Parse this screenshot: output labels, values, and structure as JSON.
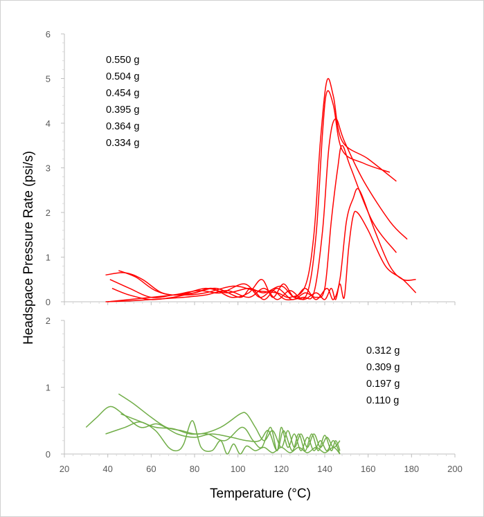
{
  "chart_data": [
    {
      "type": "line",
      "panel": "top",
      "ylabel": "Headspace Pressure Rate (psi/s)",
      "xlim": [
        20,
        200
      ],
      "ylim": [
        0,
        6
      ],
      "x_ticks": [
        "20",
        "40",
        "60",
        "80",
        "100",
        "120",
        "140",
        "160",
        "180",
        "200"
      ],
      "y_ticks": [
        "0",
        "1",
        "2",
        "3",
        "4",
        "5",
        "6"
      ],
      "legend_placement": "top-left",
      "color": "#ff0000",
      "series": [
        {
          "name": "0.550 g",
          "points": [
            [
              39,
              0.6
            ],
            [
              48,
              0.65
            ],
            [
              56,
              0.5
            ],
            [
              65,
              0.2
            ],
            [
              75,
              0.15
            ],
            [
              85,
              0.2
            ],
            [
              98,
              0.35
            ],
            [
              108,
              0.25
            ],
            [
              118,
              0.2
            ],
            [
              124,
              0.1
            ],
            [
              131,
              0.35
            ],
            [
              135,
              1.5
            ],
            [
              138,
              3.6
            ],
            [
              141,
              4.95
            ],
            [
              144,
              4.6
            ],
            [
              148,
              3.6
            ],
            [
              160,
              3.2
            ],
            [
              173,
              2.7
            ]
          ]
        },
        {
          "name": "0.504 g",
          "points": [
            [
              45,
              0.7
            ],
            [
              53,
              0.55
            ],
            [
              62,
              0.25
            ],
            [
              72,
              0.15
            ],
            [
              85,
              0.3
            ],
            [
              95,
              0.2
            ],
            [
              105,
              0.3
            ],
            [
              112,
              0.2
            ],
            [
              120,
              0.35
            ],
            [
              126,
              0.1
            ],
            [
              132,
              0.2
            ],
            [
              136,
              1.5
            ],
            [
              139,
              3.8
            ],
            [
              141,
              4.7
            ],
            [
              144,
              4.4
            ],
            [
              148,
              3.4
            ],
            [
              158,
              3.1
            ],
            [
              170,
              2.9
            ]
          ]
        },
        {
          "name": "0.454 g",
          "points": [
            [
              41,
              0.5
            ],
            [
              50,
              0.3
            ],
            [
              60,
              0.1
            ],
            [
              70,
              0.15
            ],
            [
              82,
              0.25
            ],
            [
              92,
              0.2
            ],
            [
              103,
              0.4
            ],
            [
              110,
              0.1
            ],
            [
              116,
              0.25
            ],
            [
              122,
              0.05
            ],
            [
              130,
              0.1
            ],
            [
              135,
              0.2
            ],
            [
              139,
              1.6
            ],
            [
              142,
              3.5
            ],
            [
              145,
              4.1
            ],
            [
              149,
              3.6
            ],
            [
              158,
              2.7
            ],
            [
              170,
              1.8
            ],
            [
              178,
              1.4
            ]
          ]
        },
        {
          "name": "0.395 g",
          "points": [
            [
              42,
              0.3
            ],
            [
              50,
              0.15
            ],
            [
              60,
              0.05
            ],
            [
              70,
              0.1
            ],
            [
              80,
              0.2
            ],
            [
              90,
              0.3
            ],
            [
              101,
              0.1
            ],
            [
              106,
              0.3
            ],
            [
              112,
              0.05
            ],
            [
              118,
              0.3
            ],
            [
              125,
              0.05
            ],
            [
              131,
              0.2
            ],
            [
              136,
              0.1
            ],
            [
              140,
              0.3
            ],
            [
              143,
              1.8
            ],
            [
              146,
              3.0
            ],
            [
              148,
              3.5
            ],
            [
              152,
              3.0
            ],
            [
              162,
              1.8
            ],
            [
              173,
              1.1
            ]
          ]
        },
        {
          "name": "0.364 g",
          "points": [
            [
              40,
              0
            ],
            [
              50,
              0.05
            ],
            [
              60,
              0.1
            ],
            [
              70,
              0.15
            ],
            [
              80,
              0.2
            ],
            [
              88,
              0.3
            ],
            [
              97,
              0.1
            ],
            [
              105,
              0.2
            ],
            [
              111,
              0.5
            ],
            [
              116,
              0.1
            ],
            [
              121,
              0.4
            ],
            [
              126,
              0.1
            ],
            [
              131,
              0.3
            ],
            [
              136,
              0.05
            ],
            [
              141,
              0.3
            ],
            [
              144,
              0.05
            ],
            [
              147,
              0.5
            ],
            [
              150,
              1.8
            ],
            [
              153,
              2.3
            ],
            [
              156,
              2.5
            ],
            [
              163,
              1.6
            ],
            [
              170,
              0.8
            ],
            [
              176,
              0.5
            ],
            [
              182,
              0.5
            ]
          ]
        },
        {
          "name": "0.334 g",
          "points": [
            [
              39,
              0
            ],
            [
              50,
              0.02
            ],
            [
              60,
              0.05
            ],
            [
              75,
              0.1
            ],
            [
              85,
              0.15
            ],
            [
              95,
              0.25
            ],
            [
              105,
              0.1
            ],
            [
              112,
              0.3
            ],
            [
              118,
              0.05
            ],
            [
              124,
              0.25
            ],
            [
              130,
              0.05
            ],
            [
              136,
              0.2
            ],
            [
              140,
              0.05
            ],
            [
              143,
              0.3
            ],
            [
              145,
              0.05
            ],
            [
              147,
              0.4
            ],
            [
              149,
              0.1
            ],
            [
              151,
              1.2
            ],
            [
              153,
              1.9
            ],
            [
              155,
              2.0
            ],
            [
              160,
              1.6
            ],
            [
              168,
              0.8
            ],
            [
              176,
              0.5
            ],
            [
              182,
              0.2
            ]
          ]
        }
      ]
    },
    {
      "type": "line",
      "panel": "bottom",
      "xlabel": "Temperature (°C)",
      "xlim": [
        20,
        200
      ],
      "ylim": [
        0,
        2
      ],
      "x_ticks": [
        "20",
        "40",
        "60",
        "80",
        "100",
        "120",
        "140",
        "160",
        "180",
        "200"
      ],
      "y_ticks": [
        "0",
        "1",
        "2"
      ],
      "legend_placement": "top-right",
      "color": "#70ad47",
      "series": [
        {
          "name": "0.312 g",
          "points": [
            [
              30,
              0.4
            ],
            [
              35,
              0.55
            ],
            [
              41,
              0.71
            ],
            [
              47,
              0.6
            ],
            [
              55,
              0.4
            ],
            [
              63,
              0.45
            ],
            [
              72,
              0.3
            ],
            [
              80,
              0.25
            ],
            [
              88,
              0.3
            ],
            [
              97,
              0.25
            ],
            [
              104,
              0.2
            ],
            [
              110,
              0.2
            ],
            [
              114,
              0.35
            ],
            [
              118,
              0.05
            ],
            [
              121,
              0.35
            ],
            [
              125,
              0.05
            ],
            [
              128,
              0.3
            ],
            [
              131,
              0.05
            ],
            [
              134,
              0.3
            ],
            [
              137,
              0.05
            ],
            [
              140,
              0.28
            ],
            [
              143,
              0.05
            ],
            [
              145,
              0.2
            ],
            [
              147,
              0.05
            ]
          ]
        },
        {
          "name": "0.309 g",
          "points": [
            [
              45,
              0.9
            ],
            [
              52,
              0.75
            ],
            [
              60,
              0.55
            ],
            [
              67,
              0.4
            ],
            [
              74,
              0.35
            ],
            [
              82,
              0.3
            ],
            [
              92,
              0.4
            ],
            [
              101,
              0.6
            ],
            [
              104,
              0.6
            ],
            [
              108,
              0.4
            ],
            [
              112,
              0.2
            ],
            [
              116,
              0.35
            ],
            [
              120,
              0.1
            ],
            [
              123,
              0.35
            ],
            [
              126,
              0.1
            ],
            [
              129,
              0.3
            ],
            [
              132,
              0.1
            ],
            [
              135,
              0.3
            ],
            [
              138,
              0.1
            ],
            [
              141,
              0.25
            ],
            [
              144,
              0.1
            ],
            [
              147,
              0.2
            ]
          ]
        },
        {
          "name": "0.197 g",
          "points": [
            [
              46,
              0.6
            ],
            [
              54,
              0.5
            ],
            [
              62,
              0.4
            ],
            [
              70,
              0.38
            ],
            [
              78,
              0.3
            ],
            [
              86,
              0.3
            ],
            [
              94,
              0.2
            ],
            [
              102,
              0.4
            ],
            [
              107,
              0.2
            ],
            [
              111,
              0.1
            ],
            [
              115,
              0.4
            ],
            [
              118,
              0.05
            ],
            [
              120,
              0.4
            ],
            [
              123,
              0.1
            ],
            [
              126,
              0.3
            ],
            [
              129,
              0.05
            ],
            [
              132,
              0.25
            ],
            [
              135,
              0.05
            ],
            [
              138,
              0.2
            ],
            [
              141,
              0.05
            ],
            [
              144,
              0.2
            ],
            [
              147,
              0
            ]
          ]
        },
        {
          "name": "0.110 g",
          "points": [
            [
              39,
              0.3
            ],
            [
              48,
              0.4
            ],
            [
              55,
              0.48
            ],
            [
              62,
              0.35
            ],
            [
              68,
              0.1
            ],
            [
              72,
              0.05
            ],
            [
              75,
              0.15
            ],
            [
              79,
              0.5
            ],
            [
              83,
              0.1
            ],
            [
              88,
              0.05
            ],
            [
              92,
              0.2
            ],
            [
              95,
              0
            ],
            [
              98,
              0.15
            ],
            [
              101,
              0
            ],
            [
              104,
              0.12
            ],
            [
              108,
              0.05
            ],
            [
              112,
              0.1
            ],
            [
              116,
              0.02
            ],
            [
              120,
              0.1
            ],
            [
              124,
              0.02
            ],
            [
              128,
              0.1
            ],
            [
              132,
              0.02
            ],
            [
              136,
              0.1
            ],
            [
              140,
              0.02
            ],
            [
              144,
              0.1
            ],
            [
              147,
              0
            ]
          ]
        }
      ]
    }
  ]
}
